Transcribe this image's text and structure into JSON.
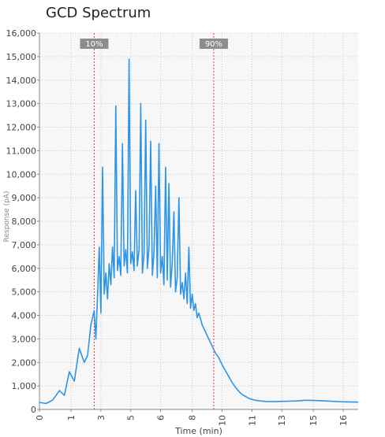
{
  "chart_data": {
    "type": "line",
    "title": "GCD Spectrum",
    "xlabel": "Time (min)",
    "ylabel": "Response (pA)",
    "ylim": [
      0,
      16000
    ],
    "yticks": [
      0,
      1000,
      2000,
      3000,
      4000,
      5000,
      6000,
      7000,
      8000,
      9000,
      10000,
      11000,
      12000,
      13000,
      14000,
      15000,
      16000
    ],
    "ytick_labels": [
      "0",
      "1,000",
      "2,000",
      "3,000",
      "4,000",
      "5,000",
      "6,000",
      "7,000",
      "8,000",
      "9,000",
      "10,000",
      "11,000",
      "12,000",
      "13,000",
      "14,000",
      "15,000",
      "16,000"
    ],
    "xticks": [
      0,
      1,
      3,
      5,
      6,
      8,
      10,
      11,
      13,
      15,
      16
    ],
    "xtick_positions": [
      0,
      1.9,
      3.7,
      5.5,
      7.3,
      9.2,
      11.0,
      12.8,
      14.6,
      16.5,
      18.3
    ],
    "xlim": [
      0,
      19.2
    ],
    "grid": true,
    "series": [
      {
        "name": "",
        "color": "#2d95e8",
        "x": [
          0.0,
          0.4,
          0.8,
          1.2,
          1.5,
          1.8,
          2.1,
          2.4,
          2.7,
          2.9,
          3.1,
          3.3,
          3.4,
          3.5,
          3.6,
          3.7,
          3.8,
          3.9,
          4.0,
          4.1,
          4.2,
          4.3,
          4.4,
          4.5,
          4.6,
          4.7,
          4.8,
          4.9,
          5.0,
          5.1,
          5.2,
          5.3,
          5.4,
          5.5,
          5.6,
          5.7,
          5.8,
          5.9,
          6.0,
          6.1,
          6.2,
          6.3,
          6.4,
          6.5,
          6.6,
          6.7,
          6.8,
          6.9,
          7.0,
          7.1,
          7.2,
          7.3,
          7.4,
          7.5,
          7.6,
          7.7,
          7.8,
          7.9,
          8.0,
          8.1,
          8.2,
          8.3,
          8.4,
          8.5,
          8.6,
          8.7,
          8.8,
          8.9,
          9.0,
          9.1,
          9.2,
          9.3,
          9.4,
          9.5,
          9.6,
          9.8,
          10.0,
          10.2,
          10.4,
          10.6,
          10.8,
          11.0,
          11.2,
          11.4,
          11.6,
          11.8,
          12.0,
          12.2,
          12.4,
          12.6,
          12.8,
          13.0,
          13.3,
          13.6,
          14.0,
          14.5,
          15.0,
          15.5,
          16.0,
          16.5,
          17.0,
          17.5,
          18.0,
          18.5,
          19.2
        ],
        "y": [
          300,
          250,
          400,
          800,
          600,
          1600,
          1200,
          2600,
          2000,
          2300,
          3600,
          4200,
          3000,
          4800,
          6900,
          4100,
          10300,
          4900,
          5800,
          4700,
          6200,
          5300,
          6900,
          5600,
          12900,
          5900,
          6500,
          5700,
          11300,
          6100,
          6800,
          5800,
          14900,
          6200,
          6700,
          5900,
          9300,
          6100,
          6800,
          13000,
          5800,
          6600,
          12300,
          6000,
          6900,
          11400,
          5700,
          6700,
          9500,
          5600,
          11300,
          5800,
          6500,
          5300,
          10300,
          5500,
          9600,
          5200,
          6200,
          8400,
          5000,
          5600,
          9000,
          4900,
          5400,
          4700,
          5800,
          4500,
          6900,
          4300,
          4900,
          4200,
          4500,
          3900,
          4100,
          3600,
          3300,
          3000,
          2700,
          2400,
          2200,
          1900,
          1650,
          1400,
          1150,
          950,
          780,
          640,
          560,
          480,
          430,
          390,
          360,
          340,
          330,
          340,
          350,
          360,
          390,
          380,
          370,
          350,
          330,
          320,
          310
        ]
      }
    ],
    "markers": [
      {
        "label": "10%",
        "x": 3.3,
        "color": "#e53935"
      },
      {
        "label": "90%",
        "x": 10.5,
        "color": "#e53935"
      }
    ]
  }
}
